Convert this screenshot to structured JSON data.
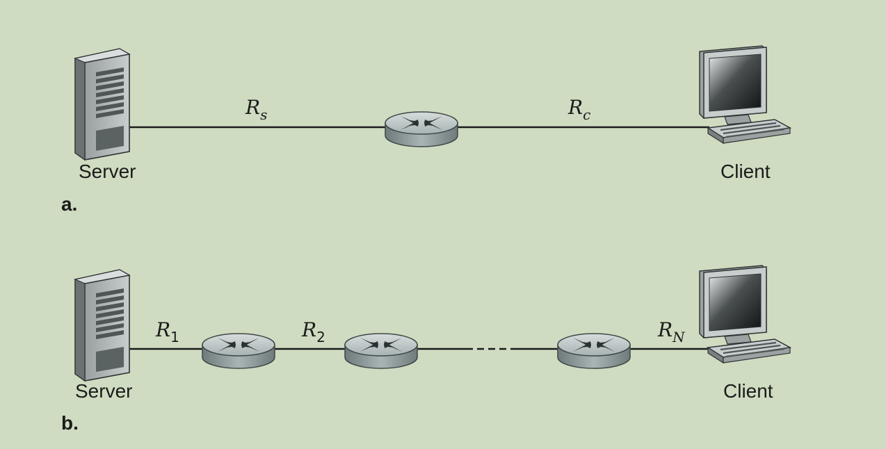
{
  "panel_a": {
    "panel_label": "a.",
    "server_label": "Server",
    "client_label": "Client",
    "link_server": {
      "symbol": "R",
      "subscript": "s"
    },
    "link_client": {
      "symbol": "R",
      "subscript": "c"
    }
  },
  "panel_b": {
    "panel_label": "b.",
    "server_label": "Server",
    "client_label": "Client",
    "link_1": {
      "symbol": "R",
      "subscript": "1"
    },
    "link_2": {
      "symbol": "R",
      "subscript": "2"
    },
    "link_n": {
      "symbol": "R",
      "subscript": "N"
    }
  },
  "colors": {
    "background": "#cfdcc1",
    "router_top": "#b9c5c5",
    "router_side": "#8f9c9c",
    "server_body": "#bfc4c4",
    "monitor_body": "#c9cdcd"
  }
}
